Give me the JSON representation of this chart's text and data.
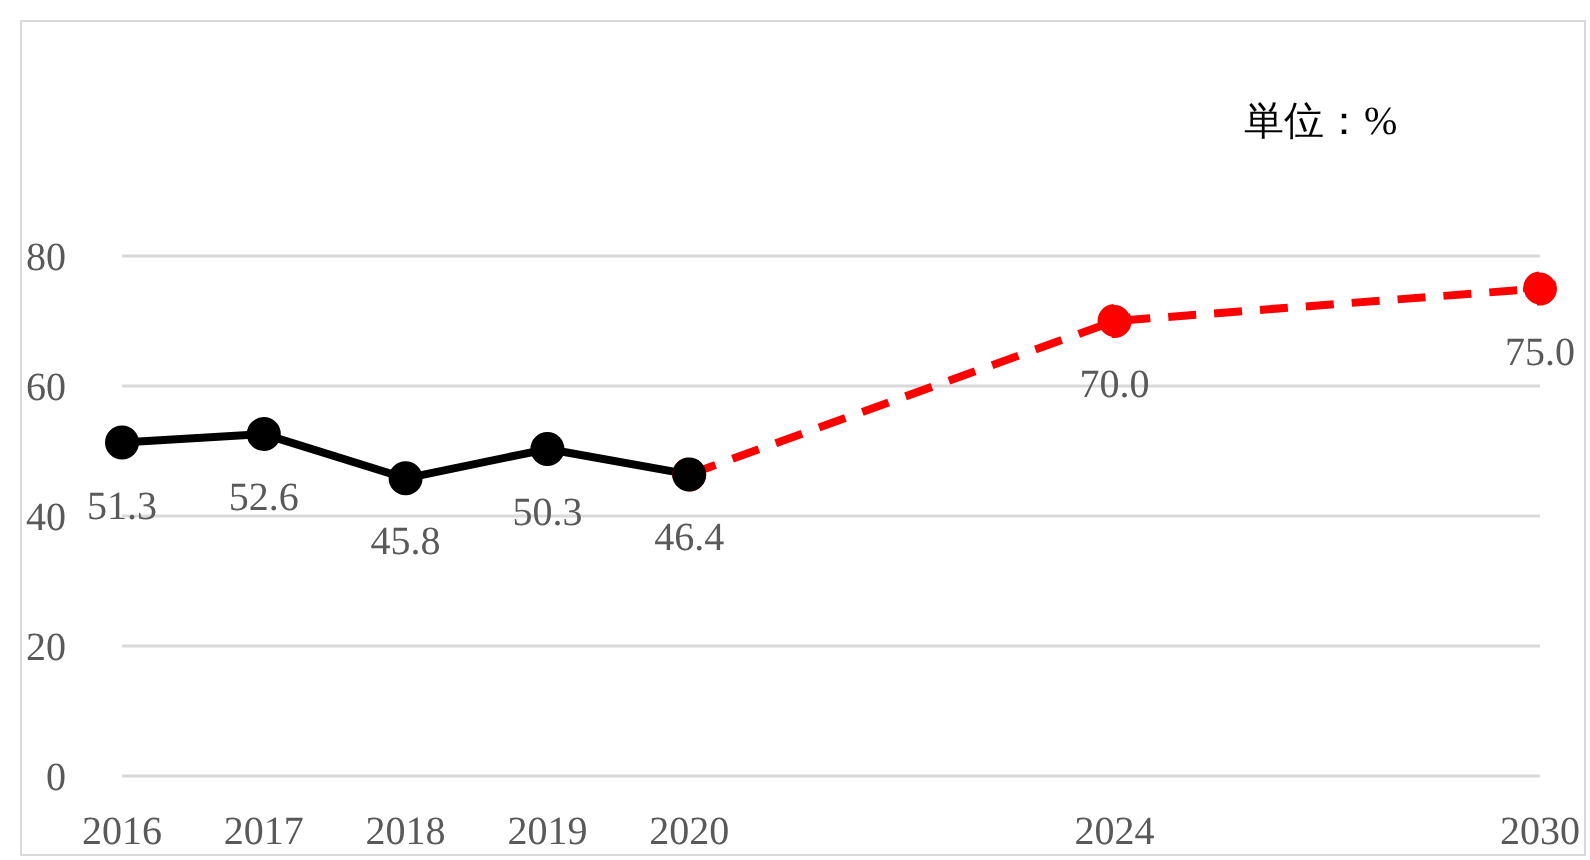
{
  "chart_data": {
    "type": "line",
    "categories": [
      "2016",
      "2017",
      "2018",
      "2019",
      "2020",
      null,
      null,
      "2024",
      null,
      null,
      "2030"
    ],
    "series": [
      {
        "color": "#ff0000",
        "line_style": "dashed",
        "values": [
          null,
          null,
          null,
          null,
          46.4,
          null,
          null,
          70.0,
          null,
          null,
          75.0
        ],
        "value_labels": [
          null,
          null,
          null,
          null,
          null,
          null,
          null,
          "70.0",
          null,
          null,
          "75.0"
        ]
      },
      {
        "color": "#000000",
        "line_style": "solid",
        "values": [
          51.3,
          52.6,
          45.8,
          50.3,
          46.4,
          null,
          null,
          null,
          null,
          null,
          null
        ],
        "value_labels": [
          "51.3",
          "52.6",
          "45.8",
          "50.3",
          "46.4",
          null,
          null,
          null,
          null,
          null,
          null
        ]
      }
    ],
    "ylim": [
      0,
      80
    ],
    "yticks": [
      0,
      20,
      40,
      60,
      80
    ],
    "grid": "y",
    "legend": false,
    "marker": "circle",
    "annotations": [
      "単位：%"
    ]
  }
}
